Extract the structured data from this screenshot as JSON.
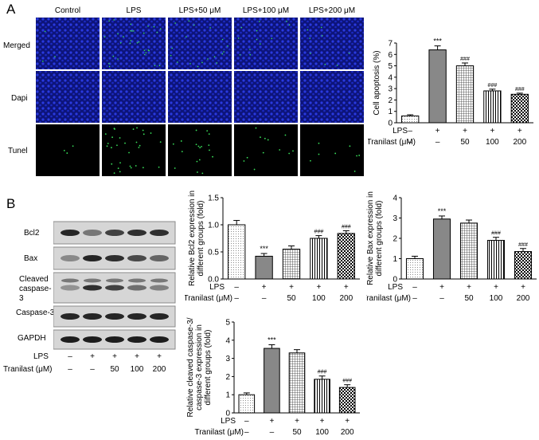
{
  "panel_a": {
    "letter": "A",
    "columns": [
      "Control",
      "LPS",
      "LPS+50 μM",
      "LPS+100 μM",
      "LPS+200 μM"
    ],
    "rows": [
      "Merged",
      "Dapi",
      "Tunel"
    ]
  },
  "panel_b": {
    "letter": "B",
    "bands": [
      "Bcl2",
      "Bax",
      "Cleaved caspase-3",
      "Caspase-3",
      "GAPDH"
    ],
    "treatment": {
      "lps_label": "LPS",
      "tranilast_label": "Tranilast (μM)",
      "lps": [
        "–",
        "+",
        "+",
        "+",
        "+"
      ],
      "tranilast": [
        "–",
        "–",
        "50",
        "100",
        "200"
      ]
    }
  },
  "colors": {
    "bar_fill": "#ffffff",
    "lps_bar": "#888888",
    "stroke": "#000000",
    "dapi": "#1a2bd0",
    "tunel": "#39e05a"
  },
  "chart_data": [
    {
      "id": "apoptosis",
      "type": "bar",
      "ylabel": "Cell apoptosis (%)",
      "ylim": [
        0,
        7
      ],
      "yticks": [
        "0",
        "1",
        "2",
        "3",
        "4",
        "5",
        "6",
        "7"
      ],
      "values": [
        0.6,
        6.4,
        5.0,
        2.8,
        2.5
      ],
      "errors": [
        0.1,
        0.35,
        0.25,
        0.15,
        0.1
      ],
      "annotations": [
        "",
        "***",
        "###",
        "###",
        "###"
      ],
      "row1_label": "LPS",
      "row1": [
        "–",
        "+",
        "+",
        "+",
        "+"
      ],
      "row2_label": "Tranilast (μM)",
      "row2": [
        "–",
        "–",
        "50",
        "100",
        "200"
      ]
    },
    {
      "id": "bcl2",
      "type": "bar",
      "ylabel": "Relative Bcl2 expression in different groups (fold)",
      "ylim": [
        0,
        1.5
      ],
      "yticks": [
        "0.0",
        "0.5",
        "1.0",
        "1.5"
      ],
      "values": [
        1.0,
        0.42,
        0.55,
        0.75,
        0.84
      ],
      "errors": [
        0.08,
        0.05,
        0.06,
        0.05,
        0.05
      ],
      "annotations": [
        "",
        "***",
        "",
        "###",
        "###"
      ],
      "row1_label": "LPS",
      "row1": [
        "–",
        "+",
        "+",
        "+",
        "+"
      ],
      "row2_label": "Tranilast (μM)",
      "row2": [
        "–",
        "–",
        "50",
        "100",
        "200"
      ]
    },
    {
      "id": "bax",
      "type": "bar",
      "ylabel": "Relative Bax expression in different groups (fold)",
      "ylim": [
        0,
        4
      ],
      "yticks": [
        "0",
        "1",
        "2",
        "3",
        "4"
      ],
      "values": [
        1.0,
        2.95,
        2.75,
        1.9,
        1.35
      ],
      "errors": [
        0.12,
        0.15,
        0.15,
        0.15,
        0.15
      ],
      "annotations": [
        "",
        "***",
        "",
        "###",
        "###"
      ],
      "row1_label": "LPS",
      "row1": [
        "–",
        "+",
        "+",
        "+",
        "+"
      ],
      "row2_label": "Tranilast (μM)",
      "row2": [
        "–",
        "–",
        "50",
        "100",
        "200"
      ]
    },
    {
      "id": "caspase",
      "type": "bar",
      "ylabel": "Relative cleaved caspase-3/ caspase-3 expression in different groups (fold)",
      "ylim": [
        0,
        5
      ],
      "yticks": [
        "0",
        "1",
        "2",
        "3",
        "4",
        "5"
      ],
      "values": [
        1.0,
        3.55,
        3.3,
        1.85,
        1.4
      ],
      "errors": [
        0.1,
        0.2,
        0.18,
        0.18,
        0.15
      ],
      "annotations": [
        "",
        "***",
        "",
        "###",
        "###"
      ],
      "row1_label": "LPS",
      "row1": [
        "–",
        "+",
        "+",
        "+",
        "+"
      ],
      "row2_label": "Tranilast (μM)",
      "row2": [
        "–",
        "–",
        "50",
        "100",
        "200"
      ]
    }
  ]
}
